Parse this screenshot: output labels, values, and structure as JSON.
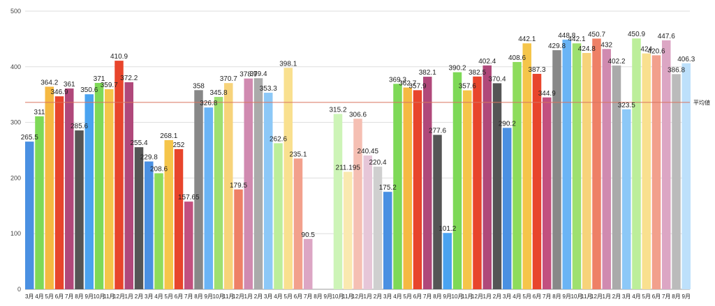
{
  "chart_data": {
    "type": "bar",
    "ylim": [
      0,
      500
    ],
    "yticks": [
      0,
      100,
      200,
      300,
      400,
      500
    ],
    "grid": true,
    "average": {
      "label": "平均値",
      "value": 336,
      "color": "#d9735f"
    },
    "categories": [
      "3月",
      "4月",
      "5月",
      "6月",
      "7月",
      "8月",
      "9月",
      "10月",
      "11月",
      "12月",
      "1月",
      "2月",
      "3月",
      "4月",
      "5月",
      "6月",
      "7月",
      "8月",
      "9月",
      "10月",
      "11月",
      "12月",
      "1月",
      "2月",
      "3月",
      "4月",
      "5月",
      "6月",
      "7月",
      "8月",
      "9月",
      "10月",
      "11月",
      "12月",
      "1月",
      "2月",
      "3月",
      "4月",
      "5月",
      "6月",
      "7月",
      "8月",
      "9月",
      "10月",
      "11月",
      "12月",
      "1月",
      "2月",
      "3月",
      "4月",
      "5月",
      "6月",
      "7月",
      "8月",
      "9月",
      "10月",
      "11月",
      "12月",
      "1月",
      "2月",
      "3月",
      "4月",
      "5月",
      "6月",
      "7月",
      "8月",
      "9月"
    ],
    "values": [
      265.5,
      311,
      364.2,
      346.9,
      361,
      285.6,
      350.6,
      371,
      359.7,
      410.9,
      372.2,
      255.4,
      229.8,
      208.6,
      268.1,
      252,
      157.65,
      358,
      326.8,
      345.8,
      370.7,
      179.5,
      378.9,
      379.4,
      353.3,
      262.6,
      398.1,
      235.1,
      90.5,
      null,
      null,
      315.2,
      211.195,
      306.6,
      240.45,
      220.4,
      175.2,
      369.3,
      362.7,
      357.9,
      382.1,
      277.6,
      101.2,
      390.2,
      357.6,
      382.5,
      402.4,
      370.4,
      290.2,
      408.6,
      442.1,
      387.3,
      344.9,
      429.8,
      448.8,
      442.1,
      424.8,
      450.7,
      432,
      402.2,
      323.5,
      450.9,
      424,
      420.6,
      447.6,
      386.8,
      406.3
    ],
    "value_labels": [
      "265.5",
      "311",
      "364.2",
      "346.9",
      "361",
      "285.6",
      "350.6",
      "371",
      "359.7",
      "410.9",
      "372.2",
      "255.4",
      "229.8",
      "208.6",
      "268.1",
      "252",
      "157.65",
      "358",
      "326.8",
      "345.8",
      "370.7",
      "179.5",
      "378.9",
      "379.4",
      "353.3",
      "262.6",
      "398.1",
      "235.1",
      "90.5",
      "",
      "",
      "315.2",
      "211.195",
      "306.6",
      "240.45",
      "220.4",
      "175.2",
      "369.3",
      "362.7",
      "357.9",
      "382.1",
      "277.6",
      "101.2",
      "390.2",
      "357.6",
      "382.5",
      "402.4",
      "370.4",
      "290.2",
      "408.6",
      "442.1",
      "387.3",
      "344.9",
      "429.8",
      "448.8",
      "442.1",
      "424.8",
      "450.7",
      "432",
      "402.2",
      "323.5",
      "450.9",
      "424",
      "420.6",
      "447.6",
      "386.8",
      "406.3"
    ],
    "palette": [
      "#4a90e2",
      "#7ed957",
      "#f5b942",
      "#e8452c",
      "#b0487a",
      "#555555",
      "#4aa3f0",
      "#7ed957",
      "#f5c54a",
      "#e8452c",
      "#b0487a",
      "#555555",
      "#4a90e2",
      "#8edc5c",
      "#f5c54a",
      "#e8452c",
      "#c2507f",
      "#888888",
      "#6ab4f5",
      "#9ee070",
      "#f7d37a",
      "#ee8066",
      "#d08ab0",
      "#aaaaaa",
      "#8cc8f7",
      "#bcee9a",
      "#f9e08f",
      "#f2a08c",
      "#dca6c4",
      "#bbbbbb",
      "#bde0fb",
      "#cdf4b7",
      "#fae9b0",
      "#f5bfb3",
      "#e6c6d8",
      "#cfcfcf",
      "#4a90e2",
      "#7ed957",
      "#f5b942",
      "#e8452c",
      "#b0487a",
      "#555555",
      "#4aa3f0",
      "#7ed957",
      "#f5c54a",
      "#e8452c",
      "#b0487a",
      "#555555",
      "#4a90e2",
      "#8edc5c",
      "#f5c54a",
      "#e8452c",
      "#c2507f",
      "#888888",
      "#6ab4f5",
      "#9ee070",
      "#f7d37a",
      "#ee8066",
      "#d08ab0",
      "#aaaaaa",
      "#8cc8f7",
      "#bcee9a",
      "#f9e08f",
      "#f2a08c",
      "#dca6c4",
      "#bbbbbb",
      "#bde0fb"
    ]
  }
}
